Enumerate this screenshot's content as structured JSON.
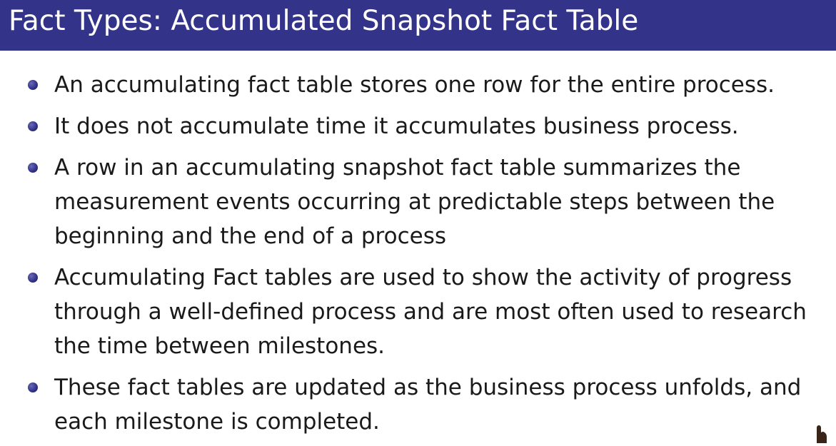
{
  "slide": {
    "title": "Fact Types: Accumulated Snapshot Fact Table",
    "bullets": [
      "An accumulating fact table stores one row for the entire process.",
      "It does not accumulate time it accumulates business process.",
      "A row in an accumulating snapshot fact table summarizes the measurement events occurring at predictable steps between the beginning and the end of a process",
      "Accumulating Fact tables are used to show the activity of progress through a well-defined process and are most often used to research the time between milestones.",
      "These fact tables are updated as the business process unfolds, and each milestone is completed."
    ]
  },
  "colors": {
    "title_bar": "#33338a",
    "title_text": "#ffffff",
    "body_text": "#1a1a1a",
    "bullet": "#33338a"
  },
  "icons": {
    "bullet": "bullet-dot-icon",
    "pointer": "hand-pointer-icon"
  }
}
